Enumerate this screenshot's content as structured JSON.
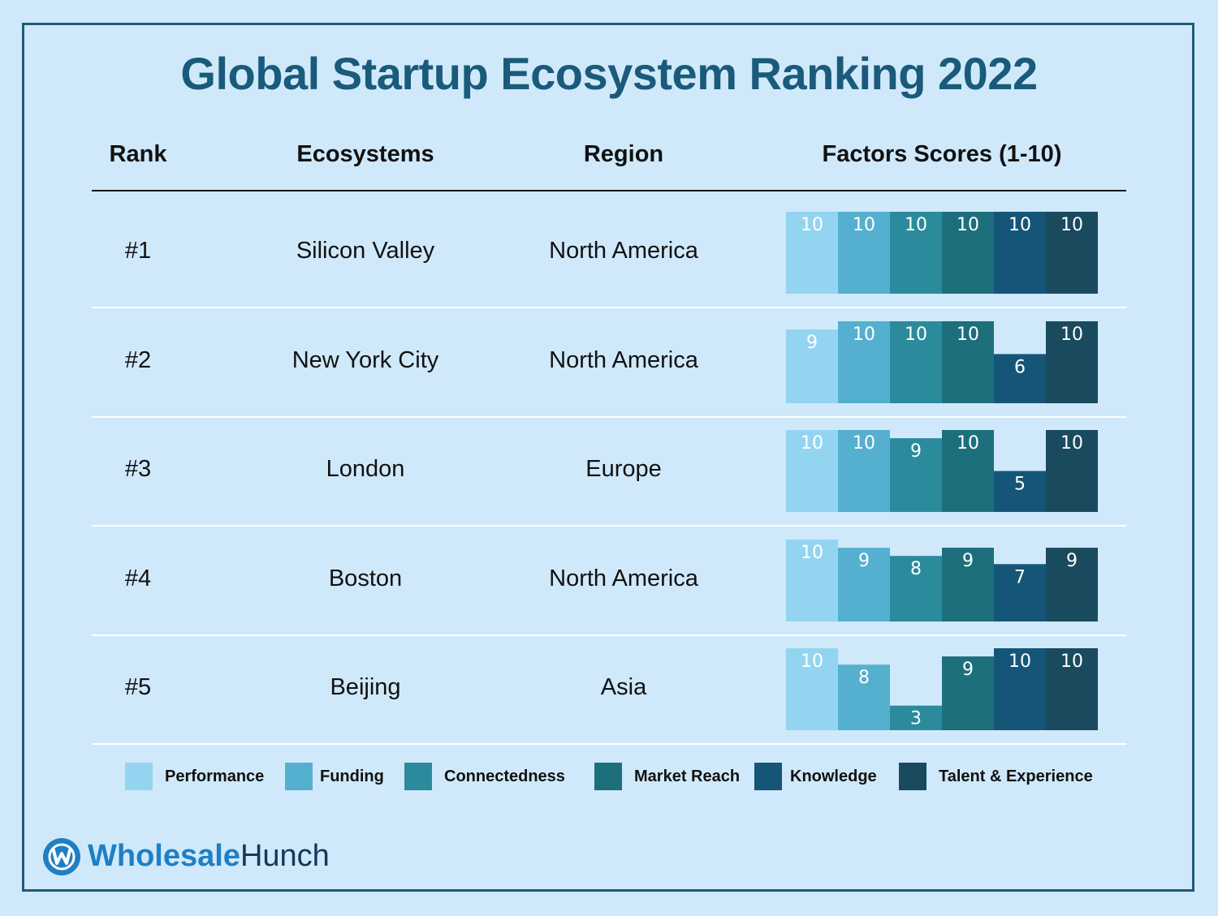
{
  "title": "Global Startup Ecosystem Ranking 2022",
  "headers": {
    "rank": "Rank",
    "ecosystems": "Ecosystems",
    "region": "Region",
    "scores": "Factors Scores (1-10)"
  },
  "rows": [
    {
      "rank": "#1",
      "ecosystem": "Silicon Valley",
      "region": "North America"
    },
    {
      "rank": "#2",
      "ecosystem": "New York City",
      "region": "North America"
    },
    {
      "rank": "#3",
      "ecosystem": "London",
      "region": "Europe"
    },
    {
      "rank": "#4",
      "ecosystem": "Boston",
      "region": "North America"
    },
    {
      "rank": "#5",
      "ecosystem": "Beijing",
      "region": "Asia"
    }
  ],
  "chart_data": {
    "type": "bar",
    "categories": [
      "Silicon Valley",
      "New York City",
      "London",
      "Boston",
      "Beijing"
    ],
    "ylim": [
      0,
      10
    ],
    "series": [
      {
        "name": "Performance",
        "color": "#93d5f1",
        "values": [
          10,
          9,
          10,
          10,
          10
        ]
      },
      {
        "name": "Funding",
        "color": "#55b0cf",
        "values": [
          10,
          10,
          10,
          9,
          8
        ]
      },
      {
        "name": "Connectedness",
        "color": "#2b8b9d",
        "values": [
          10,
          10,
          9,
          8,
          3
        ]
      },
      {
        "name": "Market Reach",
        "color": "#1d6f7c",
        "values": [
          10,
          10,
          10,
          9,
          9
        ]
      },
      {
        "name": "Knowledge",
        "color": "#155678",
        "values": [
          10,
          6,
          5,
          7,
          10
        ]
      },
      {
        "name": "Talent & Experience",
        "color": "#1a4a5e",
        "values": [
          10,
          10,
          10,
          9,
          10
        ]
      }
    ],
    "legend": "bottom"
  },
  "logo": {
    "part1": "Wholesale",
    "part2": "Hunch",
    "icon": "wholesalehunch-logo-icon"
  }
}
